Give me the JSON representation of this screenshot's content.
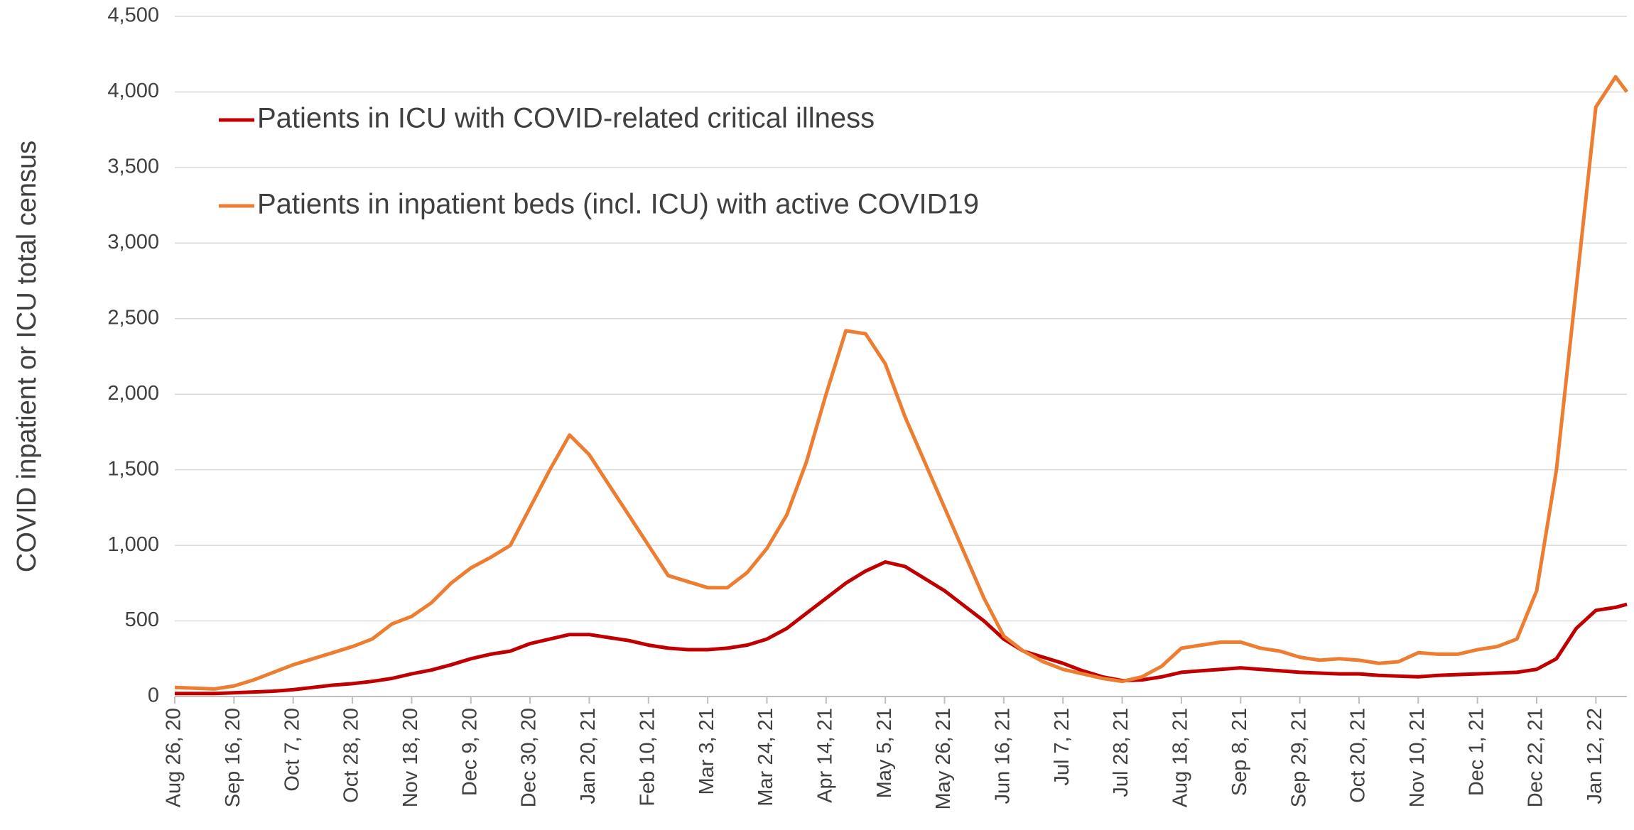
{
  "chart_data": {
    "type": "line",
    "y_label": "COVID inpatient or ICU total census",
    "x": [
      "2020-08-26",
      "2020-09-02",
      "2020-09-09",
      "2020-09-16",
      "2020-09-23",
      "2020-09-30",
      "2020-10-07",
      "2020-10-14",
      "2020-10-21",
      "2020-10-28",
      "2020-11-04",
      "2020-11-11",
      "2020-11-18",
      "2020-11-25",
      "2020-12-02",
      "2020-12-09",
      "2020-12-16",
      "2020-12-23",
      "2020-12-30",
      "2021-01-06",
      "2021-01-13",
      "2021-01-20",
      "2021-01-27",
      "2021-02-03",
      "2021-02-10",
      "2021-02-17",
      "2021-02-24",
      "2021-03-03",
      "2021-03-10",
      "2021-03-17",
      "2021-03-24",
      "2021-03-31",
      "2021-04-07",
      "2021-04-14",
      "2021-04-21",
      "2021-04-28",
      "2021-05-05",
      "2021-05-12",
      "2021-05-19",
      "2021-05-26",
      "2021-06-02",
      "2021-06-09",
      "2021-06-16",
      "2021-06-23",
      "2021-06-30",
      "2021-07-07",
      "2021-07-14",
      "2021-07-21",
      "2021-07-28",
      "2021-08-04",
      "2021-08-11",
      "2021-08-18",
      "2021-08-25",
      "2021-09-01",
      "2021-09-08",
      "2021-09-15",
      "2021-09-22",
      "2021-09-29",
      "2021-10-06",
      "2021-10-13",
      "2021-10-20",
      "2021-10-27",
      "2021-11-03",
      "2021-11-10",
      "2021-11-17",
      "2021-11-24",
      "2021-12-01",
      "2021-12-08",
      "2021-12-15",
      "2021-12-22",
      "2021-12-29",
      "2022-01-05",
      "2022-01-12",
      "2022-01-19",
      "2022-01-23"
    ],
    "series": [
      {
        "name": "Patients in ICU with COVID-related critical illness",
        "color": "#c00000",
        "values": [
          20,
          20,
          20,
          25,
          30,
          35,
          45,
          60,
          75,
          85,
          100,
          120,
          150,
          175,
          210,
          250,
          280,
          300,
          350,
          380,
          410,
          410,
          390,
          370,
          340,
          320,
          310,
          310,
          320,
          340,
          380,
          450,
          550,
          650,
          750,
          830,
          890,
          860,
          780,
          700,
          600,
          500,
          380,
          300,
          260,
          220,
          170,
          130,
          105,
          110,
          130,
          160,
          170,
          180,
          190,
          180,
          170,
          160,
          155,
          150,
          150,
          140,
          135,
          130,
          140,
          145,
          150,
          155,
          160,
          180,
          250,
          450,
          570,
          590,
          610
        ]
      },
      {
        "name": "Patients in inpatient beds (incl. ICU) with active COVID19",
        "color": "#ed7d31",
        "values": [
          60,
          55,
          50,
          70,
          110,
          160,
          210,
          250,
          290,
          330,
          380,
          480,
          530,
          620,
          750,
          850,
          920,
          1000,
          1250,
          1500,
          1730,
          1600,
          1400,
          1200,
          1000,
          800,
          760,
          720,
          720,
          820,
          980,
          1200,
          1550,
          2000,
          2420,
          2400,
          2200,
          1850,
          1550,
          1250,
          950,
          650,
          400,
          300,
          230,
          180,
          150,
          120,
          100,
          130,
          200,
          320,
          340,
          360,
          360,
          320,
          300,
          260,
          240,
          250,
          240,
          220,
          230,
          290,
          280,
          280,
          310,
          330,
          380,
          700,
          1500,
          2700,
          3900,
          4100,
          4000
        ]
      }
    ],
    "xlim": [
      "2020-08-26",
      "2022-01-23"
    ],
    "xticks": [
      {
        "value": "2020-08-26",
        "label": "Aug 26, 20"
      },
      {
        "value": "2020-09-16",
        "label": "Sep 16, 20"
      },
      {
        "value": "2020-10-07",
        "label": "Oct 7, 20"
      },
      {
        "value": "2020-10-28",
        "label": "Oct 28, 20"
      },
      {
        "value": "2020-11-18",
        "label": "Nov 18, 20"
      },
      {
        "value": "2020-12-09",
        "label": "Dec 9, 20"
      },
      {
        "value": "2020-12-30",
        "label": "Dec 30, 20"
      },
      {
        "value": "2021-01-20",
        "label": "Jan 20, 21"
      },
      {
        "value": "2021-02-10",
        "label": "Feb 10, 21"
      },
      {
        "value": "2021-03-03",
        "label": "Mar 3, 21"
      },
      {
        "value": "2021-03-24",
        "label": "Mar 24, 21"
      },
      {
        "value": "2021-04-14",
        "label": "Apr 14, 21"
      },
      {
        "value": "2021-05-05",
        "label": "May 5, 21"
      },
      {
        "value": "2021-05-26",
        "label": "May 26, 21"
      },
      {
        "value": "2021-06-16",
        "label": "Jun 16, 21"
      },
      {
        "value": "2021-07-07",
        "label": "Jul 7, 21"
      },
      {
        "value": "2021-07-28",
        "label": "Jul 28, 21"
      },
      {
        "value": "2021-08-18",
        "label": "Aug 18, 21"
      },
      {
        "value": "2021-09-08",
        "label": "Sep 8, 21"
      },
      {
        "value": "2021-09-29",
        "label": "Sep 29, 21"
      },
      {
        "value": "2021-10-20",
        "label": "Oct 20, 21"
      },
      {
        "value": "2021-11-10",
        "label": "Nov 10, 21"
      },
      {
        "value": "2021-12-01",
        "label": "Dec 1, 21"
      },
      {
        "value": "2021-12-22",
        "label": "Dec 22, 21"
      },
      {
        "value": "2022-01-12",
        "label": "Jan 12, 22"
      }
    ],
    "ylim": [
      0,
      4500
    ],
    "yticks": [
      0,
      500,
      {
        "value": 1000,
        "label": "1,000"
      },
      {
        "value": 1500,
        "label": "1,500"
      },
      {
        "value": 2000,
        "label": "2,000"
      },
      {
        "value": 2500,
        "label": "2,500"
      },
      {
        "value": 3000,
        "label": "3,000"
      },
      {
        "value": 3500,
        "label": "3,500"
      },
      {
        "value": 4000,
        "label": "4,000"
      },
      {
        "value": 4500,
        "label": "4,500"
      }
    ],
    "grid": true,
    "legend": "top-left"
  }
}
